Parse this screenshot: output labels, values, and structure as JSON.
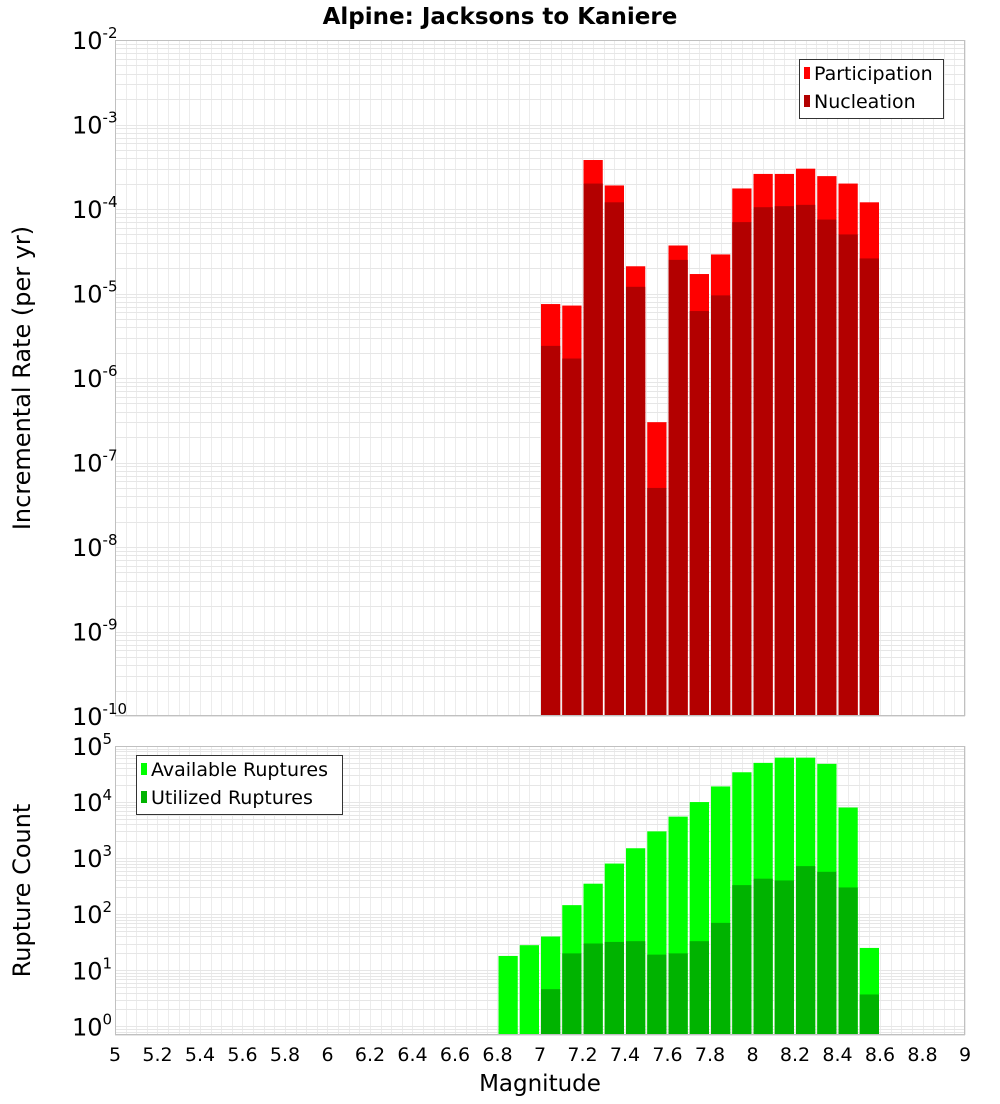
{
  "chart_data": [
    {
      "type": "bar",
      "title": "Alpine: Jacksons to Kaniere",
      "xlabel": "",
      "ylabel": "Incremental Rate (per yr)",
      "xlim": [
        5,
        9
      ],
      "ylim": [
        1e-10,
        0.01
      ],
      "yscale": "log",
      "grid": true,
      "legend_position": "top-right",
      "bar_width": 0.1,
      "ytick_exponents": [
        "-10",
        "-9",
        "-8",
        "-7",
        "-6",
        "-5",
        "-4",
        "-3",
        "-2"
      ],
      "x": [
        7.0,
        7.1,
        7.2,
        7.3,
        7.4,
        7.5,
        7.6,
        7.7,
        7.8,
        7.9,
        8.0,
        8.1,
        8.2,
        8.3,
        8.4,
        8.5
      ],
      "series": [
        {
          "name": "Participation",
          "color": "#ff0000",
          "values": [
            7.5e-06,
            7.2e-06,
            0.00038,
            0.00019,
            2.1e-05,
            3e-07,
            3.7e-05,
            1.7e-05,
            2.9e-05,
            0.000175,
            0.00026,
            0.00026,
            0.0003,
            0.000245,
            0.0002,
            0.00012
          ]
        },
        {
          "name": "Nucleation",
          "color": "#b30000",
          "values": [
            2.4e-06,
            1.7e-06,
            0.0002,
            0.00012,
            1.2e-05,
            5e-08,
            2.5e-05,
            6.2e-06,
            9.5e-06,
            7e-05,
            0.000105,
            0.000108,
            0.000112,
            7.5e-05,
            5e-05,
            2.6e-05
          ]
        }
      ]
    },
    {
      "type": "bar",
      "title": "",
      "xlabel": "Magnitude",
      "ylabel": "Rupture Count",
      "xlim": [
        5,
        9
      ],
      "ylim": [
        0.7,
        100000
      ],
      "yscale": "log",
      "grid": true,
      "legend_position": "top-left",
      "bar_width": 0.1,
      "ytick_exponents": [
        "0",
        "1",
        "2",
        "3",
        "4",
        "5"
      ],
      "xtick_labels": [
        "5",
        "5.2",
        "5.4",
        "5.6",
        "5.8",
        "6",
        "6.2",
        "6.4",
        "6.6",
        "6.8",
        "7",
        "7.2",
        "7.4",
        "7.6",
        "7.8",
        "8",
        "8.2",
        "8.4",
        "8.6",
        "8.8",
        "9"
      ],
      "x": [
        6.8,
        6.9,
        7.0,
        7.1,
        7.2,
        7.3,
        7.4,
        7.5,
        7.6,
        7.7,
        7.8,
        7.9,
        8.0,
        8.1,
        8.2,
        8.3,
        8.4,
        8.5
      ],
      "series": [
        {
          "name": "Available Ruptures",
          "color": "#00ff00",
          "values": [
            18,
            28,
            40,
            145,
            350,
            800,
            1500,
            3000,
            5500,
            10000,
            19000,
            34000,
            50000,
            62000,
            62000,
            48000,
            8000,
            25
          ]
        },
        {
          "name": "Utilized Ruptures",
          "color": "#00b300",
          "values": [
            null,
            null,
            4.6,
            20,
            30,
            32,
            33,
            19,
            20,
            33,
            70,
            330,
            430,
            400,
            720,
            570,
            300,
            3.7
          ]
        }
      ]
    }
  ]
}
